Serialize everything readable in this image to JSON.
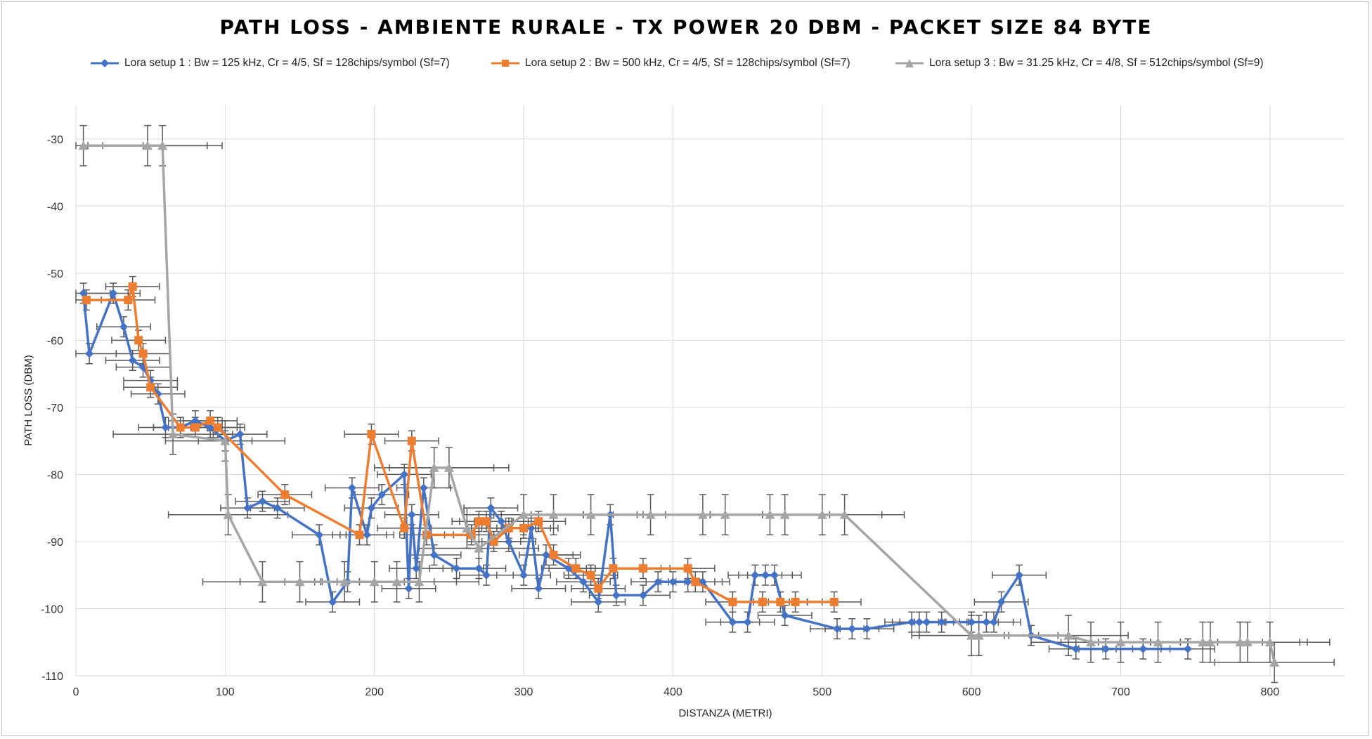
{
  "chart_data": {
    "type": "line",
    "title": "PATH LOSS - AMBIENTE RURALE - TX POWER 20 DBM - PACKET SIZE 84 BYTE",
    "xlabel": "DISTANZA (METRI)",
    "ylabel": "PATH LOSS (DBM)",
    "xlim": [
      0,
      850
    ],
    "ylim": [
      -110,
      -25
    ],
    "xticks": [
      0,
      100,
      200,
      300,
      400,
      500,
      600,
      700,
      800
    ],
    "yticks": [
      -30,
      -40,
      -50,
      -60,
      -70,
      -80,
      -90,
      -100,
      -110
    ],
    "grid": true,
    "legend_position": "top",
    "error_bars": true,
    "series": [
      {
        "name": "Lora setup 1 : Bw = 125 kHz, Cr = 4/5, Sf = 128chips/symbol (Sf=7)",
        "color": "#4472c4",
        "marker": "diamond",
        "x_err": 18,
        "y_err": 1.5,
        "points": [
          [
            5,
            -53
          ],
          [
            9,
            -62
          ],
          [
            25,
            -53
          ],
          [
            32,
            -58
          ],
          [
            38,
            -63
          ],
          [
            45,
            -64
          ],
          [
            50,
            -66
          ],
          [
            55,
            -68
          ],
          [
            60,
            -73
          ],
          [
            70,
            -73
          ],
          [
            80,
            -72
          ],
          [
            90,
            -73
          ],
          [
            100,
            -75
          ],
          [
            110,
            -74
          ],
          [
            115,
            -85
          ],
          [
            125,
            -84
          ],
          [
            135,
            -85
          ],
          [
            163,
            -89
          ],
          [
            172,
            -99
          ],
          [
            182,
            -96
          ],
          [
            185,
            -82
          ],
          [
            195,
            -89
          ],
          [
            198,
            -85
          ],
          [
            205,
            -83
          ],
          [
            220,
            -80
          ],
          [
            223,
            -97
          ],
          [
            225,
            -86
          ],
          [
            228,
            -94
          ],
          [
            233,
            -82
          ],
          [
            240,
            -92
          ],
          [
            255,
            -94
          ],
          [
            270,
            -94
          ],
          [
            275,
            -95
          ],
          [
            278,
            -85
          ],
          [
            285,
            -87
          ],
          [
            290,
            -90
          ],
          [
            300,
            -95
          ],
          [
            305,
            -88
          ],
          [
            310,
            -97
          ],
          [
            315,
            -92
          ],
          [
            330,
            -94
          ],
          [
            340,
            -96
          ],
          [
            350,
            -99
          ],
          [
            358,
            -86
          ],
          [
            362,
            -98
          ],
          [
            380,
            -98
          ],
          [
            390,
            -96
          ],
          [
            400,
            -96
          ],
          [
            410,
            -96
          ],
          [
            420,
            -96
          ],
          [
            440,
            -102
          ],
          [
            450,
            -102
          ],
          [
            455,
            -95
          ],
          [
            462,
            -95
          ],
          [
            468,
            -95
          ],
          [
            475,
            -101
          ],
          [
            510,
            -103
          ],
          [
            520,
            -103
          ],
          [
            530,
            -103
          ],
          [
            560,
            -102
          ],
          [
            565,
            -102
          ],
          [
            570,
            -102
          ],
          [
            580,
            -102
          ],
          [
            600,
            -102
          ],
          [
            610,
            -102
          ],
          [
            615,
            -102
          ],
          [
            620,
            -99
          ],
          [
            632,
            -95
          ],
          [
            640,
            -104
          ],
          [
            670,
            -106
          ],
          [
            690,
            -106
          ],
          [
            715,
            -106
          ],
          [
            745,
            -106
          ]
        ]
      },
      {
        "name": "Lora setup 2 : Bw = 500 kHz, Cr = 4/5, Sf = 128chips/symbol (Sf=7)",
        "color": "#ed7d31",
        "marker": "square",
        "x_err": 18,
        "y_err": 1.5,
        "points": [
          [
            7,
            -54
          ],
          [
            35,
            -54
          ],
          [
            38,
            -52
          ],
          [
            42,
            -60
          ],
          [
            45,
            -62
          ],
          [
            50,
            -67
          ],
          [
            70,
            -73
          ],
          [
            80,
            -73
          ],
          [
            90,
            -72
          ],
          [
            95,
            -73
          ],
          [
            140,
            -83
          ],
          [
            190,
            -89
          ],
          [
            198,
            -74
          ],
          [
            220,
            -88
          ],
          [
            225,
            -75
          ],
          [
            235,
            -89
          ],
          [
            265,
            -89
          ],
          [
            270,
            -87
          ],
          [
            275,
            -87
          ],
          [
            280,
            -90
          ],
          [
            290,
            -88
          ],
          [
            300,
            -88
          ],
          [
            310,
            -87
          ],
          [
            320,
            -92
          ],
          [
            335,
            -94
          ],
          [
            345,
            -95
          ],
          [
            350,
            -97
          ],
          [
            360,
            -94
          ],
          [
            380,
            -94
          ],
          [
            410,
            -94
          ],
          [
            415,
            -96
          ],
          [
            440,
            -99
          ],
          [
            460,
            -99
          ],
          [
            472,
            -99
          ],
          [
            482,
            -99
          ],
          [
            508,
            -99
          ]
        ]
      },
      {
        "name": "Lora setup 3 : Bw = 31.25 kHz, Cr = 4/8, Sf = 512chips/symbol (Sf=9)",
        "color": "#a5a5a5",
        "marker": "triangle",
        "x_err": 40,
        "y_err": 3,
        "points": [
          [
            5,
            -31
          ],
          [
            48,
            -31
          ],
          [
            58,
            -31
          ],
          [
            65,
            -74
          ],
          [
            100,
            -75
          ],
          [
            102,
            -86
          ],
          [
            125,
            -96
          ],
          [
            150,
            -96
          ],
          [
            180,
            -96
          ],
          [
            200,
            -96
          ],
          [
            215,
            -96
          ],
          [
            230,
            -96
          ],
          [
            240,
            -79
          ],
          [
            250,
            -79
          ],
          [
            262,
            -88
          ],
          [
            270,
            -91
          ],
          [
            300,
            -86
          ],
          [
            320,
            -86
          ],
          [
            345,
            -86
          ],
          [
            385,
            -86
          ],
          [
            420,
            -86
          ],
          [
            435,
            -86
          ],
          [
            465,
            -86
          ],
          [
            475,
            -86
          ],
          [
            500,
            -86
          ],
          [
            515,
            -86
          ],
          [
            600,
            -104
          ],
          [
            605,
            -104
          ],
          [
            665,
            -104
          ],
          [
            680,
            -105
          ],
          [
            700,
            -105
          ],
          [
            725,
            -105
          ],
          [
            755,
            -105
          ],
          [
            760,
            -105
          ],
          [
            780,
            -105
          ],
          [
            785,
            -105
          ],
          [
            800,
            -105
          ],
          [
            803,
            -108
          ]
        ]
      }
    ]
  }
}
